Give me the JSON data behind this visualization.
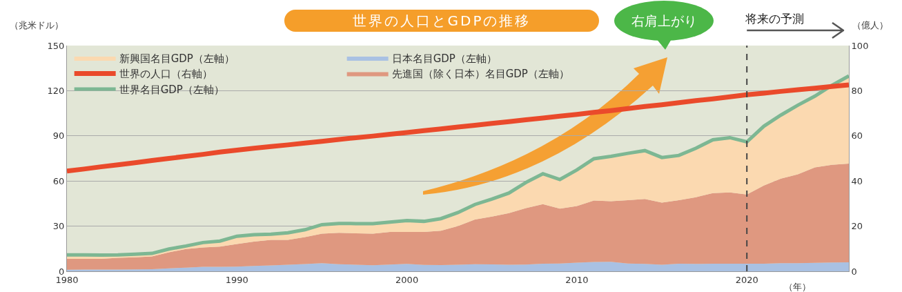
{
  "chart_data": {
    "type": "area",
    "title": "世界の人口とGDPの推移",
    "ylabel": "（兆米ドル）",
    "y2label": "（億人）",
    "xlabel": "（年）",
    "annotations": [
      "右肩上がり"
    ],
    "x": [
      1980,
      1981,
      1982,
      1983,
      1984,
      1985,
      1986,
      1987,
      1988,
      1989,
      1990,
      1991,
      1992,
      1993,
      1994,
      1995,
      1996,
      1997,
      1998,
      1999,
      2000,
      2001,
      2002,
      2003,
      2004,
      2005,
      2006,
      2007,
      2008,
      2009,
      2010,
      2011,
      2012,
      2013,
      2014,
      2015,
      2016,
      2017,
      2018,
      2019,
      2020,
      2021,
      2022,
      2023,
      2024,
      2025,
      2026
    ],
    "stacked": true,
    "xlim": [
      1980,
      2026
    ],
    "xticks": [
      1980,
      1990,
      2000,
      2010,
      2020
    ],
    "ylim": [
      0,
      150
    ],
    "yticks": [
      0,
      30,
      60,
      90,
      120,
      150
    ],
    "y2lim": [
      0,
      100
    ],
    "y2ticks": [
      0,
      20,
      40,
      60,
      80,
      100
    ],
    "grid": "y",
    "legend": "top left",
    "ref_lines": [
      {
        "axis": "x",
        "value": 2020,
        "label": "将来の予測",
        "color": "#444444",
        "line_style": "dashed"
      }
    ],
    "series": [
      {
        "name": "日本名目GDP（左軸）",
        "color": "#a9c1e3",
        "values": [
          1.0,
          1.1,
          1.1,
          1.2,
          1.3,
          1.4,
          2.0,
          2.4,
          3.0,
          3.0,
          3.1,
          3.5,
          3.9,
          4.4,
          4.8,
          5.4,
          4.7,
          4.4,
          4.0,
          4.5,
          4.9,
          4.3,
          4.1,
          4.4,
          4.7,
          4.6,
          4.4,
          4.5,
          5.0,
          5.2,
          5.7,
          6.2,
          6.3,
          5.2,
          4.9,
          4.4,
          5.0,
          4.9,
          5.0,
          5.1,
          5.0,
          5.1,
          5.4,
          5.4,
          5.6,
          5.8,
          6.0
        ]
      },
      {
        "name": "先進国（除く日本）名目GDP（左軸）",
        "color": "#df9880",
        "values": [
          7.3,
          7.2,
          7.2,
          7.7,
          8.0,
          8.5,
          10.6,
          12.4,
          12.8,
          13.4,
          15.0,
          16.2,
          17.0,
          16.5,
          17.9,
          19.6,
          20.9,
          20.8,
          21.0,
          21.7,
          21.3,
          21.9,
          22.9,
          25.6,
          29.7,
          31.8,
          34.2,
          37.5,
          39.6,
          36.4,
          37.7,
          40.8,
          40.3,
          42.0,
          43.1,
          41.2,
          42.2,
          44.3,
          47.0,
          47.3,
          46.0,
          51.9,
          56.2,
          59.0,
          63.4,
          65.0,
          65.6
        ]
      },
      {
        "name": "新興国名目GDP（左軸）",
        "color": "#fbd9b0",
        "values": [
          2.6,
          2.6,
          2.5,
          2.0,
          2.1,
          2.0,
          2.2,
          2.0,
          3.3,
          3.7,
          5.2,
          4.6,
          3.8,
          4.7,
          4.9,
          6.0,
          6.2,
          6.5,
          6.6,
          6.5,
          7.5,
          7.0,
          8.0,
          9.0,
          10.0,
          11.6,
          13.4,
          17.0,
          20.2,
          19.4,
          24.0,
          27.8,
          29.8,
          31.2,
          32.2,
          30.0,
          29.8,
          32.6,
          35.4,
          36.4,
          35.0,
          39.4,
          42.2,
          46.0,
          47.4,
          52.8,
          58.2
        ]
      },
      {
        "name": "世界名目GDP（左軸）",
        "type": "line",
        "color": "#7db793",
        "values": [
          10.9,
          10.9,
          10.8,
          10.9,
          11.4,
          11.9,
          14.8,
          16.8,
          19.1,
          20.1,
          23.3,
          24.3,
          24.7,
          25.6,
          27.6,
          31.0,
          31.8,
          31.7,
          31.6,
          32.7,
          33.7,
          33.2,
          35.0,
          39.0,
          44.4,
          48.0,
          52.0,
          59.0,
          64.8,
          61.0,
          67.4,
          74.8,
          76.4,
          78.4,
          80.2,
          75.6,
          77.0,
          81.8,
          87.4,
          88.8,
          86.0,
          96.4,
          103.8,
          110.4,
          116.4,
          123.6,
          129.8
        ]
      },
      {
        "name": "世界の人口（右軸）",
        "type": "line",
        "axis": "y2",
        "color": "#ea4a2b",
        "values": [
          44.4,
          45.3,
          46.3,
          47.2,
          48.1,
          49.1,
          50.0,
          50.9,
          51.8,
          52.8,
          53.7,
          54.5,
          55.3,
          56.0,
          56.8,
          57.6,
          58.4,
          59.2,
          59.9,
          60.7,
          61.5,
          62.3,
          63.1,
          63.9,
          64.7,
          65.5,
          66.3,
          67.1,
          67.9,
          68.7,
          69.5,
          70.4,
          71.2,
          72.1,
          73.0,
          73.8,
          74.7,
          75.6,
          76.4,
          77.3,
          78.2,
          78.9,
          79.7,
          80.4,
          81.1,
          81.9,
          82.6
        ]
      }
    ]
  }
}
